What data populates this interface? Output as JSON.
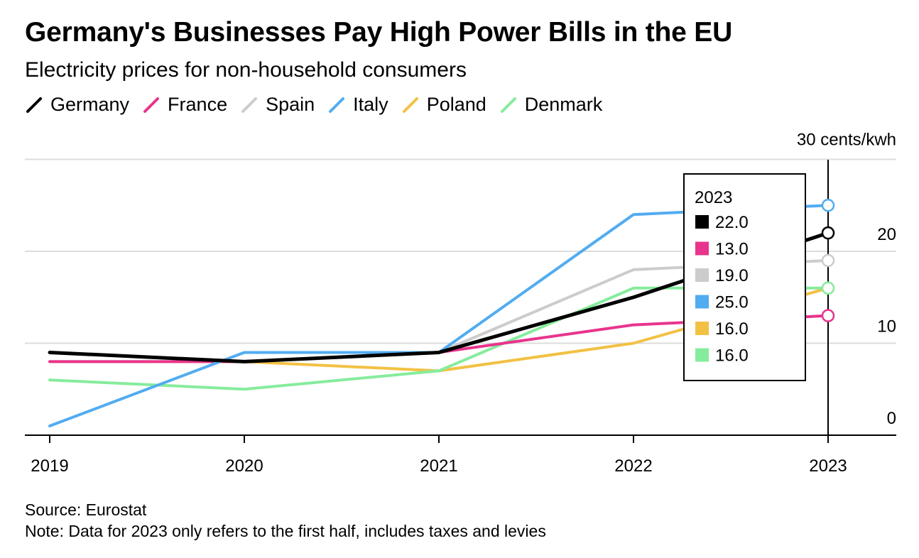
{
  "chart_data": {
    "type": "line",
    "title": "Germany's Businesses Pay High Power Bills in the EU",
    "subtitle": "Electricity prices for non-household consumers",
    "x": [
      "2019",
      "2020",
      "2021",
      "2022",
      "2023"
    ],
    "series": [
      {
        "name": "Germany",
        "color": "#000000",
        "values": [
          9.0,
          8.0,
          9.0,
          15.0,
          22.0
        ]
      },
      {
        "name": "France",
        "color": "#e8348d",
        "values": [
          8.0,
          8.0,
          9.0,
          12.0,
          13.0
        ]
      },
      {
        "name": "Spain",
        "color": "#cccccc",
        "values": [
          9.0,
          8.0,
          9.0,
          18.0,
          19.0
        ]
      },
      {
        "name": "Italy",
        "color": "#52acf0",
        "values": [
          1.0,
          9.0,
          9.0,
          24.0,
          25.0
        ]
      },
      {
        "name": "Poland",
        "color": "#f2c144",
        "values": [
          8.0,
          8.0,
          7.0,
          10.0,
          16.0
        ]
      },
      {
        "name": "Denmark",
        "color": "#86ec9d",
        "values": [
          6.0,
          5.0,
          7.0,
          16.0,
          16.0
        ]
      }
    ],
    "ylim": [
      0,
      30
    ],
    "y_ticks": [
      {
        "value": 30,
        "label": "30 cents/kwh"
      },
      {
        "value": 20,
        "label": "20"
      },
      {
        "value": 10,
        "label": "10"
      },
      {
        "value": 0,
        "label": "0"
      }
    ],
    "axis_side": "right",
    "grid": true,
    "legend_position": "top-left",
    "tooltip": {
      "year": "2023",
      "entries": [
        {
          "color": "#000000",
          "label": "22.0"
        },
        {
          "color": "#e8348d",
          "label": "13.0"
        },
        {
          "color": "#cccccc",
          "label": "19.0"
        },
        {
          "color": "#52acf0",
          "label": "25.0"
        },
        {
          "color": "#f2c144",
          "label": "16.0"
        },
        {
          "color": "#86ec9d",
          "label": "16.0"
        }
      ]
    }
  },
  "header": {
    "title": "Germany's Businesses Pay High Power Bills in the EU",
    "subtitle": "Electricity prices for non-household consumers"
  },
  "footer": {
    "source": "Source: Eurostat",
    "note": "Note: Data for 2023 only refers to the first half, includes taxes and levies"
  }
}
